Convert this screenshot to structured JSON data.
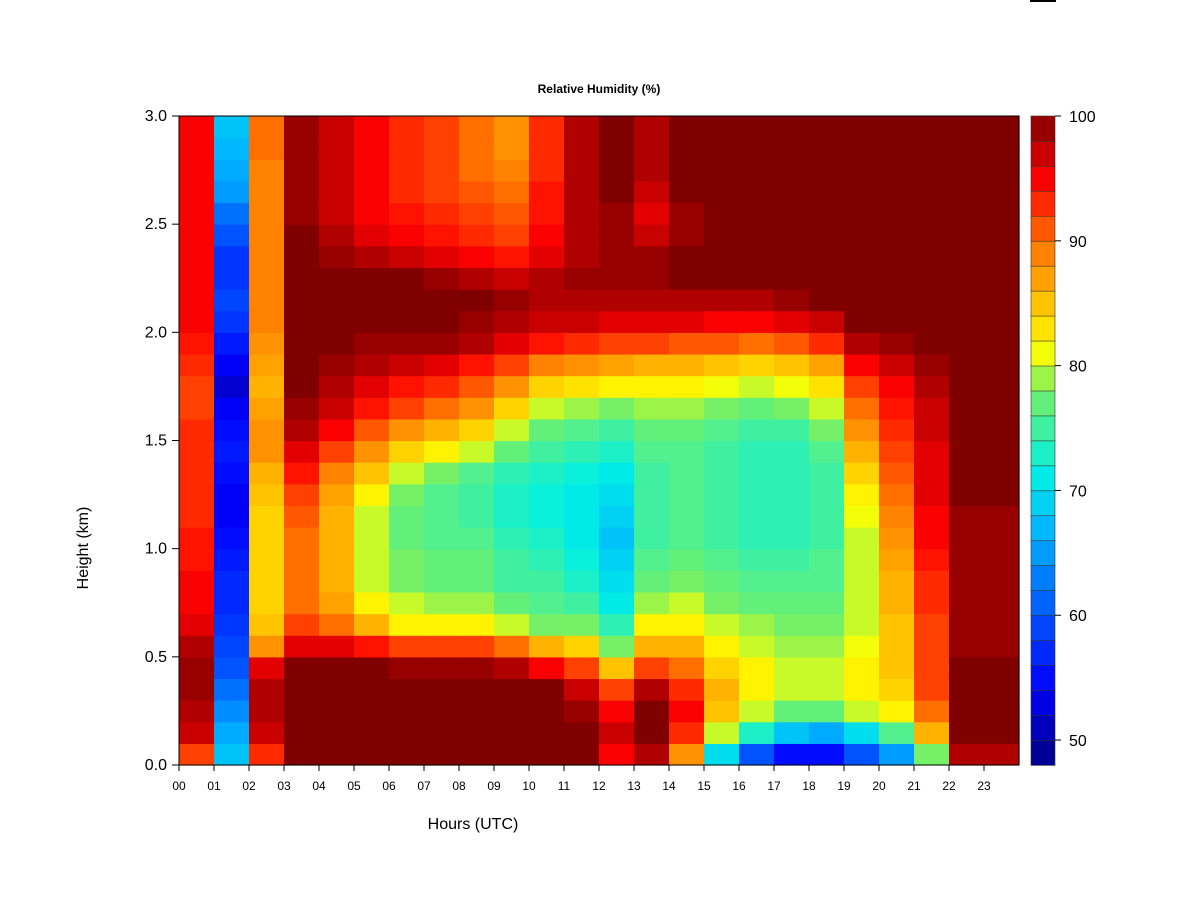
{
  "chart_data": {
    "type": "heatmap",
    "title": "Relative Humidity (%)",
    "xlabel": "Hours (UTC)",
    "ylabel": "Height (km)",
    "xlim": [
      0,
      24
    ],
    "ylim": [
      0.0,
      3.0
    ],
    "x_ticks": [
      "00",
      "01",
      "02",
      "03",
      "04",
      "05",
      "06",
      "07",
      "08",
      "09",
      "10",
      "11",
      "12",
      "13",
      "14",
      "15",
      "16",
      "17",
      "18",
      "19",
      "20",
      "21",
      "22",
      "23"
    ],
    "y_ticks": [
      "0.0",
      "0.5",
      "1.0",
      "1.5",
      "2.0",
      "2.5",
      "3.0"
    ],
    "colorbar": {
      "min": 48,
      "max": 100,
      "step": 2,
      "tick_labels": [
        "50",
        "60",
        "70",
        "80",
        "90",
        "100"
      ],
      "tick_values": [
        50,
        60,
        70,
        80,
        90,
        100
      ]
    },
    "heights_km": [
      0.05,
      0.15,
      0.25,
      0.35,
      0.45,
      0.55,
      0.65,
      0.75,
      0.85,
      0.95,
      1.05,
      1.15,
      1.25,
      1.35,
      1.45,
      1.55,
      1.65,
      1.75,
      1.85,
      1.95,
      2.05,
      2.15,
      2.25,
      2.35,
      2.45,
      2.55,
      2.65,
      2.75,
      2.85,
      2.95
    ],
    "hours_utc": [
      0.5,
      1.5,
      2.5,
      3.5,
      4.5,
      5.5,
      6.5,
      7.5,
      8.5,
      9.5,
      10.5,
      11.5,
      12.5,
      13.5,
      14.5,
      15.5,
      16.5,
      17.5,
      18.5,
      19.5,
      20.5,
      21.5,
      22.5,
      23.5
    ],
    "rh_percent": [
      [
        92,
        68,
        93,
        100,
        100,
        100,
        100,
        100,
        100,
        100,
        100,
        100,
        95,
        98,
        88,
        70,
        60,
        55,
        55,
        60,
        65,
        78,
        98,
        98
      ],
      [
        97,
        66,
        97,
        100,
        100,
        100,
        100,
        100,
        100,
        100,
        100,
        100,
        97,
        100,
        93,
        80,
        73,
        68,
        66,
        70,
        76,
        86,
        100,
        100
      ],
      [
        98,
        64,
        98,
        100,
        100,
        100,
        100,
        100,
        100,
        100,
        100,
        99,
        95,
        100,
        95,
        85,
        80,
        77,
        77,
        80,
        82,
        90,
        100,
        100
      ],
      [
        99,
        62,
        98,
        100,
        100,
        100,
        100,
        100,
        100,
        100,
        100,
        97,
        92,
        98,
        93,
        86,
        82,
        80,
        80,
        82,
        84,
        92,
        100,
        100
      ],
      [
        99,
        60,
        96,
        100,
        100,
        100,
        99,
        99,
        99,
        98,
        95,
        92,
        85,
        92,
        90,
        84,
        82,
        80,
        80,
        82,
        85,
        92,
        100,
        100
      ],
      [
        98,
        59,
        88,
        96,
        96,
        94,
        92,
        92,
        92,
        90,
        86,
        84,
        78,
        86,
        86,
        82,
        80,
        79,
        79,
        81,
        85,
        92,
        99,
        99
      ],
      [
        96,
        58,
        85,
        92,
        90,
        86,
        82,
        82,
        82,
        80,
        78,
        78,
        74,
        82,
        82,
        80,
        79,
        78,
        78,
        80,
        85,
        92,
        99,
        99
      ],
      [
        95,
        57,
        84,
        90,
        87,
        82,
        80,
        79,
        79,
        77,
        76,
        75,
        71,
        79,
        80,
        78,
        77,
        77,
        77,
        80,
        86,
        93,
        99,
        99
      ],
      [
        95,
        57,
        84,
        90,
        86,
        80,
        78,
        77,
        77,
        75,
        75,
        73,
        70,
        77,
        78,
        77,
        76,
        76,
        76,
        80,
        86,
        93,
        99,
        99
      ],
      [
        94,
        56,
        84,
        90,
        86,
        80,
        78,
        77,
        77,
        75,
        74,
        72,
        69,
        76,
        77,
        76,
        75,
        75,
        76,
        80,
        87,
        94,
        99,
        99
      ],
      [
        94,
        55,
        84,
        90,
        86,
        80,
        77,
        76,
        76,
        74,
        73,
        71,
        68,
        75,
        76,
        75,
        74,
        74,
        75,
        80,
        88,
        95,
        99,
        99
      ],
      [
        93,
        54,
        84,
        91,
        86,
        80,
        77,
        76,
        75,
        73,
        72,
        71,
        69,
        75,
        76,
        75,
        74,
        74,
        75,
        81,
        89,
        95,
        99,
        99
      ],
      [
        93,
        54,
        85,
        92,
        87,
        82,
        78,
        76,
        75,
        73,
        72,
        71,
        70,
        75,
        76,
        75,
        74,
        74,
        75,
        82,
        90,
        96,
        100,
        100
      ],
      [
        93,
        55,
        86,
        94,
        89,
        85,
        80,
        78,
        76,
        74,
        73,
        72,
        71,
        75,
        76,
        75,
        74,
        74,
        75,
        84,
        91,
        96,
        100,
        100
      ],
      [
        93,
        56,
        88,
        96,
        92,
        88,
        84,
        82,
        80,
        77,
        75,
        74,
        73,
        76,
        76,
        75,
        74,
        74,
        76,
        86,
        92,
        96,
        100,
        100
      ],
      [
        93,
        55,
        88,
        98,
        95,
        91,
        88,
        86,
        84,
        80,
        77,
        76,
        75,
        77,
        77,
        76,
        75,
        75,
        78,
        88,
        93,
        97,
        100,
        100
      ],
      [
        92,
        54,
        87,
        99,
        97,
        94,
        92,
        90,
        88,
        84,
        80,
        79,
        78,
        79,
        79,
        78,
        77,
        78,
        80,
        90,
        94,
        97,
        100,
        100
      ],
      [
        92,
        52,
        86,
        100,
        98,
        96,
        94,
        93,
        91,
        88,
        84,
        83,
        82,
        82,
        82,
        81,
        80,
        81,
        83,
        92,
        95,
        98,
        100,
        100
      ],
      [
        93,
        54,
        87,
        100,
        99,
        98,
        97,
        96,
        94,
        92,
        89,
        88,
        87,
        86,
        86,
        85,
        84,
        85,
        87,
        95,
        97,
        99,
        100,
        100
      ],
      [
        94,
        56,
        88,
        100,
        100,
        99,
        99,
        99,
        98,
        96,
        94,
        93,
        92,
        92,
        91,
        91,
        90,
        91,
        93,
        98,
        99,
        100,
        100,
        100
      ],
      [
        95,
        58,
        89,
        100,
        100,
        100,
        100,
        100,
        99,
        98,
        97,
        97,
        96,
        96,
        96,
        95,
        95,
        96,
        97,
        100,
        100,
        100,
        100,
        100
      ],
      [
        95,
        59,
        89,
        100,
        100,
        100,
        100,
        100,
        100,
        99,
        98,
        98,
        98,
        98,
        98,
        98,
        98,
        99,
        100,
        100,
        100,
        100,
        100,
        100
      ],
      [
        95,
        58,
        89,
        100,
        100,
        100,
        100,
        99,
        98,
        97,
        98,
        99,
        99,
        99,
        100,
        100,
        100,
        100,
        100,
        100,
        100,
        100,
        100,
        100
      ],
      [
        95,
        58,
        89,
        100,
        99,
        98,
        97,
        96,
        95,
        94,
        96,
        98,
        99,
        99,
        100,
        100,
        100,
        100,
        100,
        100,
        100,
        100,
        100,
        100
      ],
      [
        95,
        60,
        89,
        100,
        98,
        96,
        95,
        94,
        93,
        92,
        95,
        98,
        99,
        97,
        99,
        100,
        100,
        100,
        100,
        100,
        100,
        100,
        100,
        100
      ],
      [
        95,
        62,
        89,
        99,
        97,
        95,
        94,
        93,
        92,
        91,
        94,
        98,
        99,
        96,
        99,
        100,
        100,
        100,
        100,
        100,
        100,
        100,
        100,
        100
      ],
      [
        95,
        65,
        89,
        99,
        97,
        95,
        93,
        92,
        91,
        90,
        94,
        98,
        100,
        97,
        100,
        100,
        100,
        100,
        100,
        100,
        100,
        100,
        100,
        100
      ],
      [
        95,
        66,
        89,
        99,
        97,
        95,
        93,
        92,
        90,
        89,
        93,
        98,
        100,
        98,
        100,
        100,
        100,
        100,
        100,
        100,
        100,
        100,
        100,
        100
      ],
      [
        95,
        67,
        90,
        99,
        97,
        95,
        93,
        92,
        90,
        88,
        93,
        98,
        100,
        98,
        100,
        100,
        100,
        100,
        100,
        100,
        100,
        100,
        100,
        100
      ],
      [
        95,
        68,
        90,
        99,
        97,
        95,
        93,
        92,
        90,
        88,
        93,
        98,
        100,
        98,
        100,
        100,
        100,
        100,
        100,
        100,
        100,
        100,
        100,
        100
      ]
    ]
  }
}
